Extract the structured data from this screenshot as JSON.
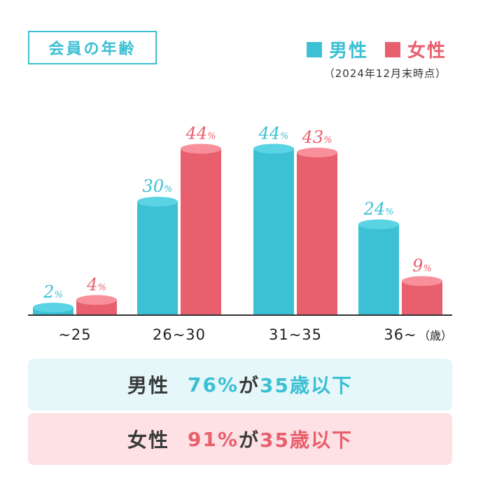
{
  "title": "会員の年齢",
  "note": "（2024年12月末時点）",
  "legend": [
    {
      "label": "男性",
      "color": "#3bc0d4"
    },
    {
      "label": "女性",
      "color": "#e85f6d"
    }
  ],
  "chart_data": {
    "type": "bar",
    "categories": [
      "~25",
      "26~30",
      "31~35",
      "36~"
    ],
    "unit_label": "（歳）",
    "series": [
      {
        "name": "男性",
        "values": [
          2,
          30,
          44,
          24
        ],
        "color": "#3bc0d4"
      },
      {
        "name": "女性",
        "values": [
          4,
          44,
          43,
          9
        ],
        "color": "#e85f6d"
      }
    ],
    "value_suffix": "%",
    "ylim": [
      0,
      50
    ]
  },
  "summary": [
    {
      "who": "男性",
      "highlight": "76%",
      "text_mid": "が",
      "highlight2": "35歳以下",
      "bg": "#e6f7fa",
      "color": "#3bc0d4"
    },
    {
      "who": "女性",
      "highlight": "91%",
      "text_mid": "が",
      "highlight2": "35歳以下",
      "bg": "#fde1e5",
      "color": "#e85f6d"
    }
  ]
}
